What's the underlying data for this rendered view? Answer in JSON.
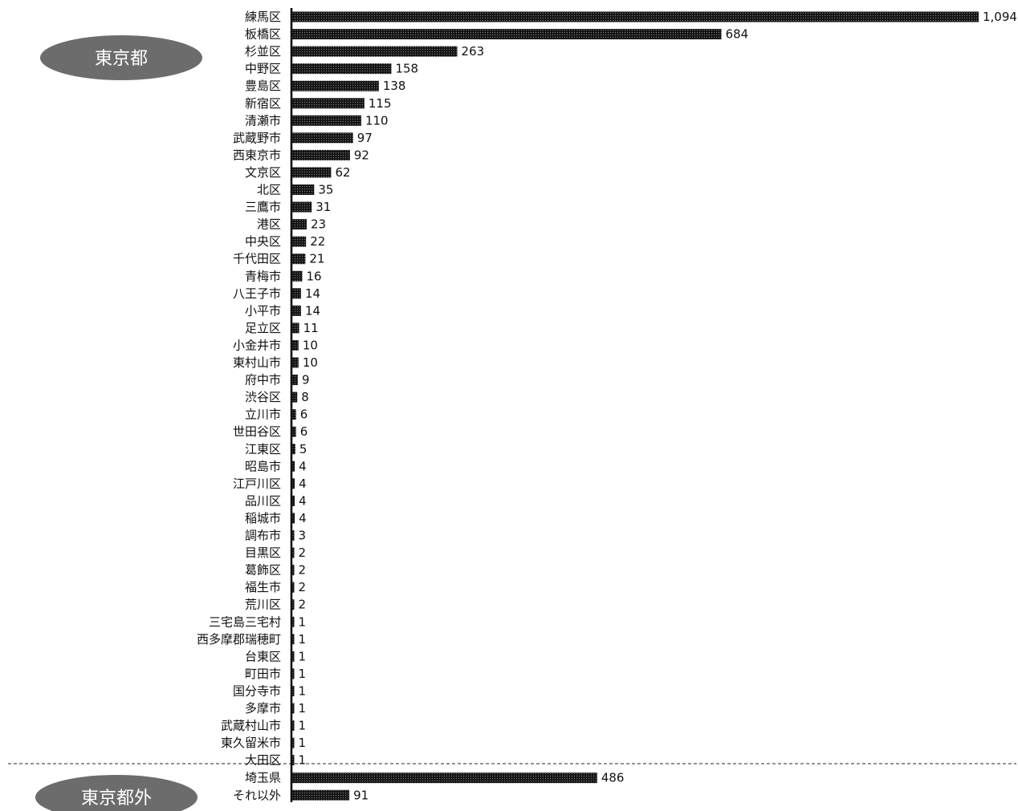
{
  "groups": [
    {
      "label": "東京都"
    },
    {
      "label": "東京都外"
    }
  ],
  "chart_data": {
    "type": "bar",
    "orientation": "horizontal",
    "grid": false,
    "title": "",
    "xlabel": "",
    "ylabel": "",
    "xlim": [
      0,
      1094
    ],
    "bar_color": "#1a1a1a",
    "categories": [
      "練馬区",
      "板橋区",
      "杉並区",
      "中野区",
      "豊島区",
      "新宿区",
      "清瀬市",
      "武蔵野市",
      "西東京市",
      "文京区",
      "北区",
      "三鷹市",
      "港区",
      "中央区",
      "千代田区",
      "青梅市",
      "八王子市",
      "小平市",
      "足立区",
      "小金井市",
      "東村山市",
      "府中市",
      "渋谷区",
      "立川市",
      "世田谷区",
      "江東区",
      "昭島市",
      "江戸川区",
      "品川区",
      "稲城市",
      "調布市",
      "目黒区",
      "葛飾区",
      "福生市",
      "荒川区",
      "三宅島三宅村",
      "西多摩郡瑞穂町",
      "台東区",
      "町田市",
      "国分寺市",
      "多摩市",
      "武蔵村山市",
      "東久留米市",
      "大田区",
      "埼玉県",
      "それ以外"
    ],
    "values": [
      1094,
      684,
      263,
      158,
      138,
      115,
      110,
      97,
      92,
      62,
      35,
      31,
      23,
      22,
      21,
      16,
      14,
      14,
      11,
      10,
      10,
      9,
      8,
      6,
      6,
      5,
      4,
      4,
      4,
      4,
      3,
      2,
      2,
      2,
      2,
      1,
      1,
      1,
      1,
      1,
      1,
      1,
      1,
      1,
      486,
      91
    ],
    "value_labels": [
      "1,094",
      "684",
      "263",
      "158",
      "138",
      "115",
      "110",
      "97",
      "92",
      "62",
      "35",
      "31",
      "23",
      "22",
      "21",
      "16",
      "14",
      "14",
      "11",
      "10",
      "10",
      "9",
      "8",
      "6",
      "6",
      "5",
      "4",
      "4",
      "4",
      "4",
      "3",
      "2",
      "2",
      "2",
      "2",
      "1",
      "1",
      "1",
      "1",
      "1",
      "1",
      "1",
      "1",
      "1",
      "486",
      "91"
    ],
    "group_of_category": [
      0,
      0,
      0,
      0,
      0,
      0,
      0,
      0,
      0,
      0,
      0,
      0,
      0,
      0,
      0,
      0,
      0,
      0,
      0,
      0,
      0,
      0,
      0,
      0,
      0,
      0,
      0,
      0,
      0,
      0,
      0,
      0,
      0,
      0,
      0,
      0,
      0,
      0,
      0,
      0,
      0,
      0,
      0,
      0,
      1,
      1
    ]
  }
}
